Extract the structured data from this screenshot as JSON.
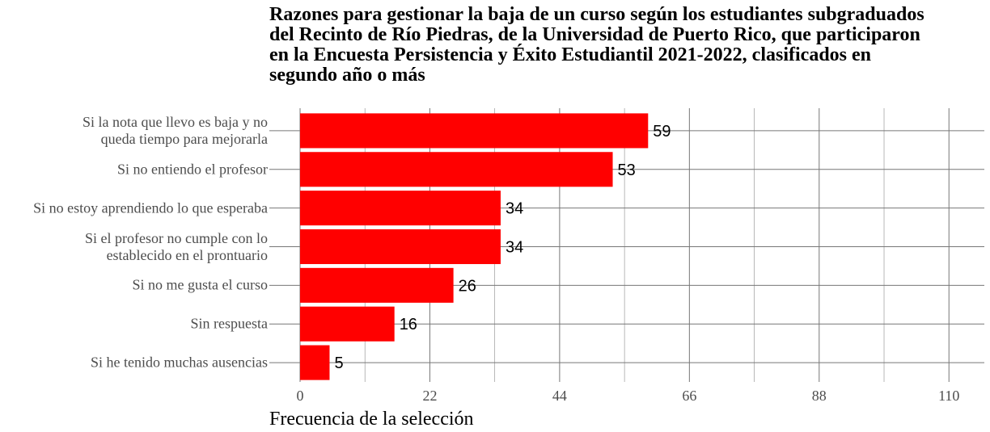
{
  "chart_data": {
    "type": "bar",
    "orientation": "horizontal",
    "title": "Razones para gestionar la baja de un curso según los estudiantes subgraduados\ndel Recinto de Río Piedras, de la Universidad de Puerto Rico, que participaron\nen la Encuesta Persistencia y Éxito Estudiantil 2021-2022, clasificados en\nsegundo año o más",
    "x_label": "Frecuencia de la selección",
    "categories": [
      "Si la nota que llevo es baja y no\nqueda tiempo para mejorarla",
      "Si no entiendo el profesor",
      "Si no estoy aprendiendo lo que esperaba",
      "Si el profesor no cumple con lo\nestablecido en el prontuario",
      "Si no me gusta el curso",
      "Sin respuesta",
      "Si he tenido muchas ausencias"
    ],
    "values": [
      59,
      53,
      34,
      34,
      26,
      16,
      5
    ],
    "color": "#ff0000",
    "xlim": [
      0,
      116
    ],
    "xticks": [
      0,
      22,
      44,
      66,
      88,
      110
    ],
    "xminor_ticks": [
      11,
      33,
      55,
      77,
      99
    ],
    "grid": true
  }
}
